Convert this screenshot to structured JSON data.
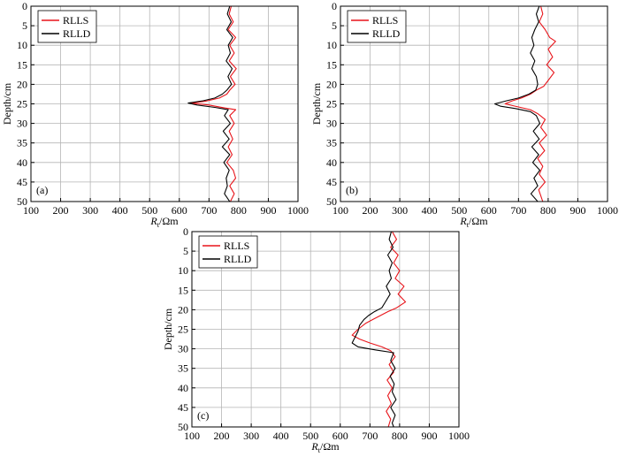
{
  "figure_panels_note": "",
  "chart_data": [
    {
      "type": "line",
      "panel_label": "(a)",
      "xlabel_main": "R",
      "xlabel_sub": "t",
      "xlabel_unit": "/Ωm",
      "ylabel": "Depth/cm",
      "xlim": [
        100,
        1000
      ],
      "ylim": [
        0,
        50
      ],
      "y_inverted": true,
      "xticks": [
        100,
        200,
        300,
        400,
        500,
        600,
        700,
        800,
        900,
        1000
      ],
      "yticks": [
        0,
        5,
        10,
        15,
        20,
        25,
        30,
        35,
        40,
        45,
        50
      ],
      "grid": true,
      "legend_position": "top-left",
      "series": [
        {
          "name": "RLLS",
          "color": "#e8141a",
          "points": [
            [
              775,
              0
            ],
            [
              768,
              2
            ],
            [
              782,
              4
            ],
            [
              765,
              6
            ],
            [
              790,
              8
            ],
            [
              770,
              10
            ],
            [
              785,
              12
            ],
            [
              768,
              14
            ],
            [
              792,
              16
            ],
            [
              772,
              18
            ],
            [
              788,
              20
            ],
            [
              770,
              21.5
            ],
            [
              760,
              22.5
            ],
            [
              735,
              23.5
            ],
            [
              690,
              24.3
            ],
            [
              640,
              24.8
            ],
            [
              700,
              25.3
            ],
            [
              750,
              26
            ],
            [
              790,
              26.5
            ],
            [
              770,
              28
            ],
            [
              785,
              30
            ],
            [
              768,
              32
            ],
            [
              780,
              34
            ],
            [
              765,
              36
            ],
            [
              778,
              38
            ],
            [
              760,
              40
            ],
            [
              782,
              42
            ],
            [
              790,
              44
            ],
            [
              770,
              46
            ],
            [
              785,
              48
            ],
            [
              772,
              50
            ]
          ]
        },
        {
          "name": "RLLD",
          "color": "#000000",
          "points": [
            [
              770,
              0
            ],
            [
              762,
              2
            ],
            [
              775,
              4
            ],
            [
              760,
              6
            ],
            [
              780,
              8
            ],
            [
              765,
              10
            ],
            [
              772,
              12
            ],
            [
              758,
              14
            ],
            [
              778,
              16
            ],
            [
              764,
              18
            ],
            [
              776,
              20
            ],
            [
              760,
              21.5
            ],
            [
              745,
              22.5
            ],
            [
              720,
              23.5
            ],
            [
              680,
              24.2
            ],
            [
              630,
              24.8
            ],
            [
              660,
              25.3
            ],
            [
              720,
              25.9
            ],
            [
              765,
              26.5
            ],
            [
              752,
              28
            ],
            [
              772,
              30
            ],
            [
              748,
              32
            ],
            [
              768,
              34
            ],
            [
              745,
              36
            ],
            [
              770,
              38
            ],
            [
              750,
              40
            ],
            [
              768,
              42
            ],
            [
              758,
              44
            ],
            [
              762,
              46
            ],
            [
              752,
              48
            ],
            [
              770,
              50
            ]
          ]
        }
      ],
      "legend_labels": [
        "RLLS",
        "RLLD"
      ]
    },
    {
      "type": "line",
      "panel_label": "(b)",
      "xlabel_main": "R",
      "xlabel_sub": "t",
      "xlabel_unit": "/Ωm",
      "ylabel": "Depth/cm",
      "xlim": [
        100,
        1000
      ],
      "ylim": [
        0,
        50
      ],
      "y_inverted": true,
      "xticks": [
        100,
        200,
        300,
        400,
        500,
        600,
        700,
        800,
        900,
        1000
      ],
      "yticks": [
        0,
        5,
        10,
        15,
        20,
        25,
        30,
        35,
        40,
        45,
        50
      ],
      "grid": true,
      "legend_position": "top-left",
      "series": [
        {
          "name": "RLLS",
          "color": "#e8141a",
          "points": [
            [
              775,
              0
            ],
            [
              782,
              2
            ],
            [
              770,
              4
            ],
            [
              790,
              6
            ],
            [
              805,
              8
            ],
            [
              825,
              9
            ],
            [
              800,
              11
            ],
            [
              815,
              13
            ],
            [
              795,
              15
            ],
            [
              820,
              17
            ],
            [
              800,
              19
            ],
            [
              785,
              20.5
            ],
            [
              760,
              21.5
            ],
            [
              740,
              22.5
            ],
            [
              710,
              23.5
            ],
            [
              680,
              24.2
            ],
            [
              655,
              25
            ],
            [
              700,
              25.8
            ],
            [
              740,
              26.5
            ],
            [
              765,
              27.5
            ],
            [
              790,
              29
            ],
            [
              775,
              31
            ],
            [
              795,
              33
            ],
            [
              770,
              35
            ],
            [
              788,
              37
            ],
            [
              765,
              39
            ],
            [
              782,
              41
            ],
            [
              770,
              43
            ],
            [
              790,
              45
            ],
            [
              768,
              47
            ],
            [
              782,
              50
            ]
          ]
        },
        {
          "name": "RLLD",
          "color": "#000000",
          "points": [
            [
              770,
              0
            ],
            [
              760,
              2
            ],
            [
              768,
              4
            ],
            [
              755,
              6
            ],
            [
              745,
              8
            ],
            [
              752,
              10
            ],
            [
              740,
              12
            ],
            [
              755,
              14
            ],
            [
              745,
              16
            ],
            [
              760,
              18
            ],
            [
              765,
              20
            ],
            [
              758,
              21.5
            ],
            [
              735,
              22.5
            ],
            [
              700,
              23.5
            ],
            [
              660,
              24.2
            ],
            [
              620,
              25
            ],
            [
              640,
              25.6
            ],
            [
              690,
              26.2
            ],
            [
              740,
              27
            ],
            [
              760,
              28
            ],
            [
              772,
              30
            ],
            [
              750,
              32
            ],
            [
              770,
              34
            ],
            [
              745,
              36
            ],
            [
              768,
              38
            ],
            [
              748,
              40
            ],
            [
              772,
              42
            ],
            [
              752,
              44
            ],
            [
              765,
              46
            ],
            [
              742,
              48
            ],
            [
              765,
              50
            ]
          ]
        }
      ],
      "legend_labels": [
        "RLLS",
        "RLLD"
      ]
    },
    {
      "type": "line",
      "panel_label": "(c)",
      "xlabel_main": "R",
      "xlabel_sub": "t",
      "xlabel_unit": "/Ωm",
      "ylabel": "Depth/cm",
      "xlim": [
        100,
        1000
      ],
      "ylim": [
        0,
        50
      ],
      "y_inverted": true,
      "xticks": [
        100,
        200,
        300,
        400,
        500,
        600,
        700,
        800,
        900,
        1000
      ],
      "yticks": [
        0,
        5,
        10,
        15,
        20,
        25,
        30,
        35,
        40,
        45,
        50
      ],
      "grid": true,
      "legend_position": "top-left",
      "series": [
        {
          "name": "RLLS",
          "color": "#e8141a",
          "points": [
            [
              775,
              0
            ],
            [
              790,
              2
            ],
            [
              770,
              4
            ],
            [
              795,
              6
            ],
            [
              780,
              8
            ],
            [
              800,
              10
            ],
            [
              785,
              12
            ],
            [
              815,
              14
            ],
            [
              795,
              16
            ],
            [
              820,
              18
            ],
            [
              790,
              19.5
            ],
            [
              760,
              20.5
            ],
            [
              735,
              21.5
            ],
            [
              710,
              22.5
            ],
            [
              685,
              23.5
            ],
            [
              660,
              25
            ],
            [
              640,
              26.5
            ],
            [
              665,
              27.5
            ],
            [
              700,
              28.5
            ],
            [
              740,
              29.5
            ],
            [
              770,
              30.5
            ],
            [
              785,
              32
            ],
            [
              765,
              34
            ],
            [
              780,
              36
            ],
            [
              758,
              38
            ],
            [
              775,
              40
            ],
            [
              760,
              42
            ],
            [
              772,
              44
            ],
            [
              755,
              46
            ],
            [
              770,
              48
            ],
            [
              762,
              50
            ]
          ]
        },
        {
          "name": "RLLD",
          "color": "#000000",
          "points": [
            [
              772,
              0
            ],
            [
              765,
              2
            ],
            [
              778,
              4
            ],
            [
              760,
              6
            ],
            [
              775,
              8
            ],
            [
              765,
              10
            ],
            [
              772,
              12
            ],
            [
              755,
              14
            ],
            [
              768,
              16
            ],
            [
              752,
              18
            ],
            [
              740,
              19.5
            ],
            [
              715,
              20.5
            ],
            [
              695,
              21.5
            ],
            [
              680,
              22.5
            ],
            [
              665,
              24
            ],
            [
              660,
              25.5
            ],
            [
              650,
              27
            ],
            [
              640,
              28.5
            ],
            [
              660,
              29.5
            ],
            [
              720,
              30.3
            ],
            [
              780,
              31
            ],
            [
              770,
              33
            ],
            [
              785,
              35
            ],
            [
              768,
              37
            ],
            [
              782,
              39
            ],
            [
              775,
              41
            ],
            [
              788,
              43
            ],
            [
              770,
              45
            ],
            [
              785,
              47
            ],
            [
              775,
              49
            ],
            [
              780,
              50
            ]
          ]
        }
      ],
      "legend_labels": [
        "RLLS",
        "RLLD"
      ]
    }
  ]
}
